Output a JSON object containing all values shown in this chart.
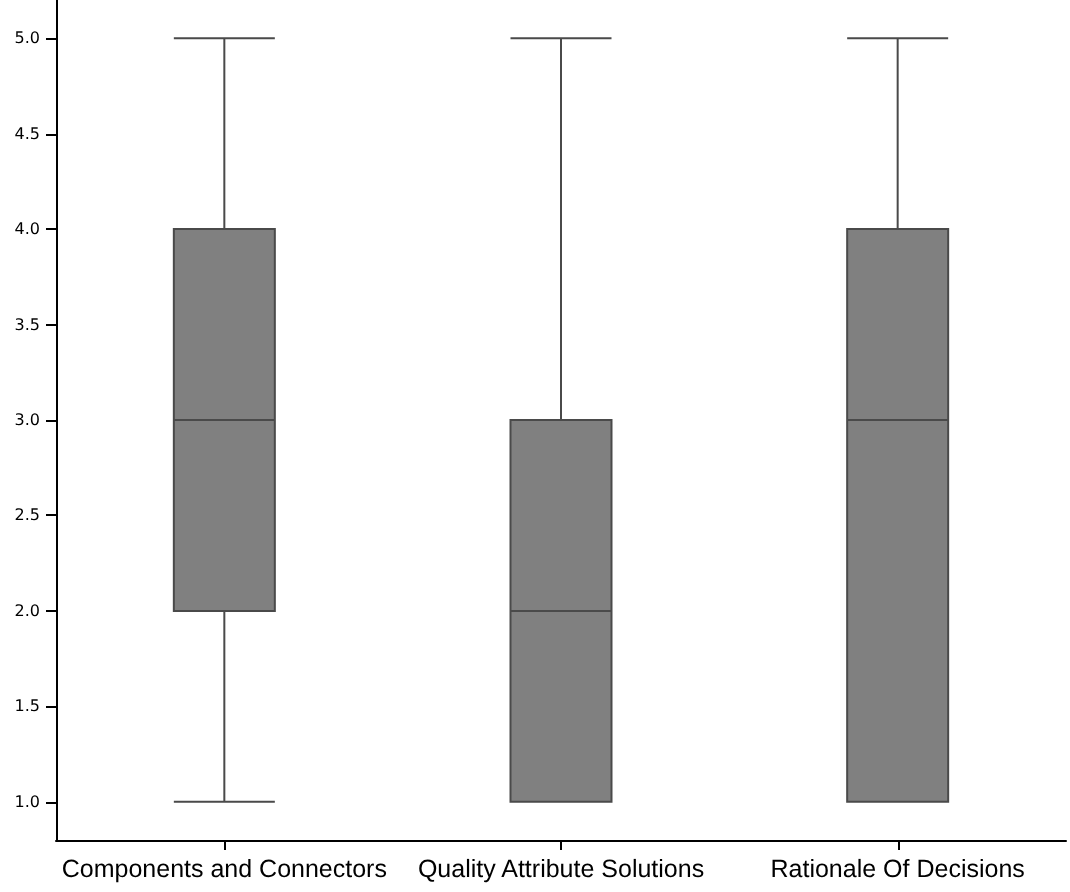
{
  "chart_data": {
    "type": "box",
    "categories": [
      "Components and Connectors",
      "Quality Attribute Solutions",
      "Rationale Of Decisions"
    ],
    "color": "#808080",
    "boxes": [
      {
        "low": 1,
        "q1": 2,
        "median": 3,
        "q3": 4,
        "high": 5
      },
      {
        "low": 1,
        "q1": 1,
        "median": 2,
        "q3": 3,
        "high": 5
      },
      {
        "low": 1,
        "q1": 1,
        "median": 3,
        "q3": 4,
        "high": 5
      }
    ],
    "ylim": [
      0.8,
      5.2
    ],
    "yticks": [
      {
        "value": 1,
        "label": "1.0"
      },
      {
        "value": 1.5,
        "label": "1.5"
      },
      {
        "value": 2,
        "label": "2.0"
      },
      {
        "value": 2.5,
        "label": "2.5"
      },
      {
        "value": 3,
        "label": "3.0"
      },
      {
        "value": 3.5,
        "label": "3.5"
      },
      {
        "value": 4,
        "label": "4.0"
      },
      {
        "value": 4.5,
        "label": "4.5"
      },
      {
        "value": 5,
        "label": "5.0"
      }
    ],
    "grid": false
  }
}
